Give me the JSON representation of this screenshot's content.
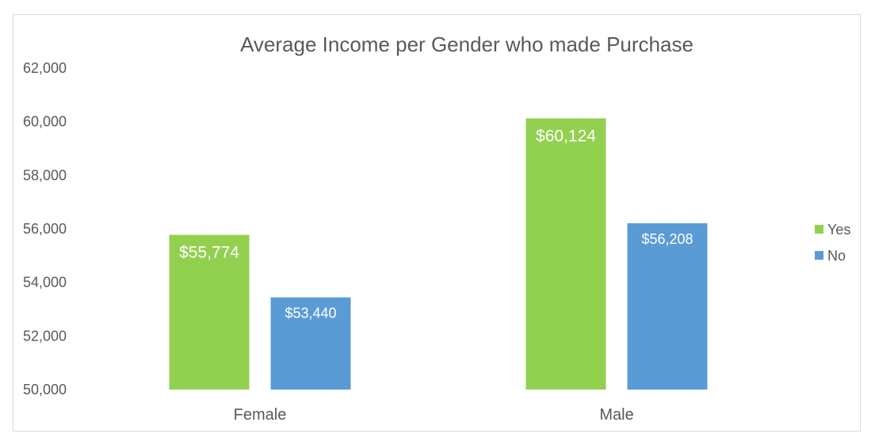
{
  "chart_data": {
    "type": "bar",
    "title": "Average Income per Gender who made Purchase",
    "categories": [
      "Female",
      "Male"
    ],
    "series": [
      {
        "name": "Yes",
        "color": "#92d050",
        "values": [
          55774,
          60124
        ],
        "labels": [
          "$55,774",
          "$60,124"
        ]
      },
      {
        "name": "No",
        "color": "#5b9bd5",
        "values": [
          53440,
          56208
        ],
        "labels": [
          "$53,440",
          "$56,208"
        ]
      }
    ],
    "ylim": [
      50000,
      62000
    ],
    "yticks": [
      50000,
      52000,
      54000,
      56000,
      58000,
      60000,
      62000
    ],
    "ytick_labels": [
      "50,000",
      "52,000",
      "54,000",
      "56,000",
      "58,000",
      "60,000",
      "62,000"
    ],
    "grid": false,
    "legend_position": "right"
  }
}
